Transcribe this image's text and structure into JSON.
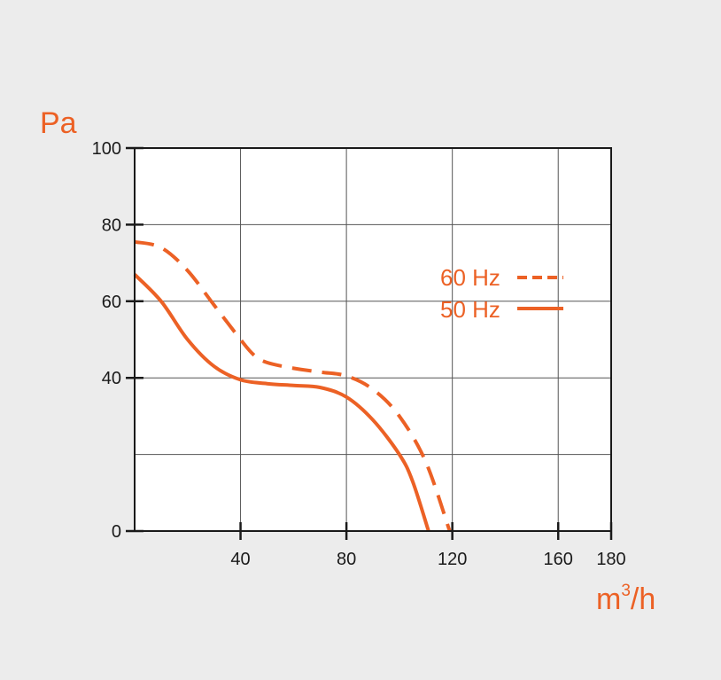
{
  "colors": {
    "accent": "#ec6125",
    "axis": "#1a1a1a",
    "grid": "#555555",
    "plot_bg": "#ffffff"
  },
  "chart_data": {
    "type": "line",
    "ylabel": "Pa",
    "xlabel_base": "m",
    "xlabel_sup": "3",
    "xlabel_suffix": "/h",
    "xlim": [
      0,
      180
    ],
    "ylim": [
      0,
      100
    ],
    "x_ticks": [
      40,
      80,
      120,
      160,
      180
    ],
    "x_tick_labels": [
      "40",
      "80",
      "120",
      "160",
      "180"
    ],
    "y_ticks": [
      0,
      40,
      60,
      80,
      100
    ],
    "y_tick_labels": [
      "0",
      "40",
      "60",
      "80",
      "100"
    ],
    "grid": true,
    "legend_position": "top-right",
    "series": [
      {
        "name": "60 Hz",
        "style": "dashed",
        "points": [
          [
            0,
            75.5
          ],
          [
            10,
            74
          ],
          [
            20,
            68
          ],
          [
            30,
            59
          ],
          [
            40,
            50
          ],
          [
            45,
            46
          ],
          [
            50,
            44
          ],
          [
            60,
            42.5
          ],
          [
            70,
            41.5
          ],
          [
            80,
            40.5
          ],
          [
            90,
            37
          ],
          [
            100,
            30
          ],
          [
            110,
            18
          ],
          [
            119,
            0
          ]
        ]
      },
      {
        "name": "50 Hz",
        "style": "solid",
        "points": [
          [
            0,
            67
          ],
          [
            10,
            60
          ],
          [
            20,
            50
          ],
          [
            30,
            43
          ],
          [
            40,
            39.5
          ],
          [
            50,
            38.5
          ],
          [
            60,
            38
          ],
          [
            70,
            37.5
          ],
          [
            80,
            35
          ],
          [
            90,
            29
          ],
          [
            100,
            20
          ],
          [
            105,
            13
          ],
          [
            111,
            0
          ]
        ]
      }
    ]
  }
}
